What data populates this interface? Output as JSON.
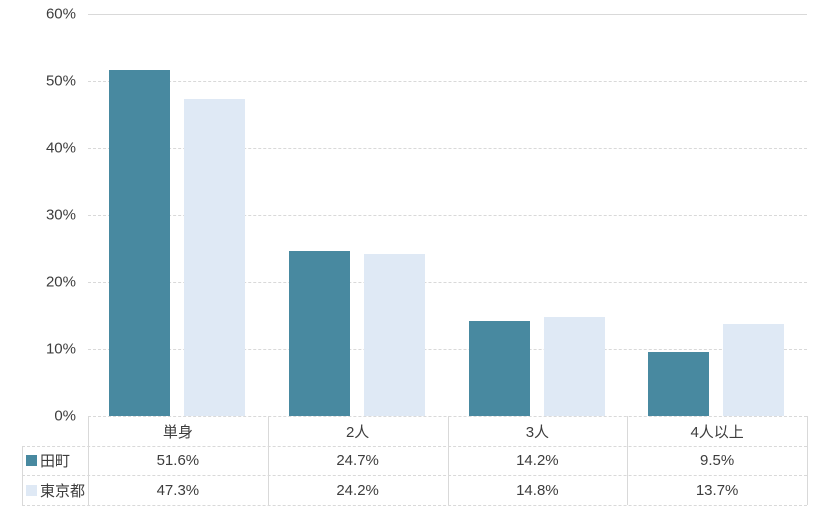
{
  "chart_data": {
    "type": "bar",
    "title": "",
    "xlabel": "",
    "ylabel": "",
    "categories": [
      "単身",
      "2人",
      "3人",
      "4人以上"
    ],
    "category_names": [
      "single",
      "2person",
      "3person",
      "4plus"
    ],
    "series": [
      {
        "name": "田町",
        "key": "tamachi",
        "color": "#4889a0",
        "values": [
          51.6,
          24.7,
          14.2,
          9.5
        ],
        "value_labels": [
          "51.6%",
          "24.7%",
          "14.2%",
          "9.5%"
        ]
      },
      {
        "name": "東京都",
        "key": "tokyo",
        "color": "#dfe9f5",
        "values": [
          47.3,
          24.2,
          14.8,
          13.7
        ],
        "value_labels": [
          "47.3%",
          "24.2%",
          "14.8%",
          "13.7%"
        ]
      }
    ],
    "ylim": [
      0,
      60
    ],
    "ytick_step": 10,
    "ytick_labels": [
      "0%",
      "10%",
      "20%",
      "30%",
      "40%",
      "50%",
      "60%"
    ],
    "grid": "horizontal-dashed",
    "legend_position": "data-table-left-column"
  },
  "colors": {
    "grid": "#d9d9d9",
    "table_border": "#d9d9d9",
    "text": "#3d3d3d",
    "background": "#ffffff"
  }
}
